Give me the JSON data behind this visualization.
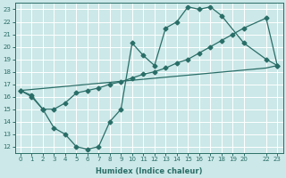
{
  "xlabel": "Humidex (Indice chaleur)",
  "bg_color": "#cce8e8",
  "grid_color": "#ffffff",
  "line_color": "#2a6e68",
  "xlim": [
    -0.5,
    23.5
  ],
  "ylim": [
    11.5,
    23.5
  ],
  "yticks": [
    12,
    13,
    14,
    15,
    16,
    17,
    18,
    19,
    20,
    21,
    22,
    23
  ],
  "xtick_positions": [
    0,
    1,
    2,
    3,
    4,
    5,
    6,
    7,
    8,
    9,
    10,
    11,
    12,
    13,
    14,
    15,
    16,
    17,
    18,
    19,
    20,
    22,
    23
  ],
  "xtick_labels": [
    "0",
    "1",
    "2",
    "3",
    "4",
    "5",
    "6",
    "7",
    "8",
    "9",
    "10",
    "11",
    "12",
    "13",
    "14",
    "15",
    "16",
    "17",
    "18",
    "19",
    "20",
    "22",
    "23"
  ],
  "line1_x": [
    0,
    1,
    2,
    3,
    4,
    5,
    6,
    7,
    8,
    9,
    10,
    11,
    12,
    13,
    14,
    15,
    16,
    17,
    18,
    20,
    22,
    23
  ],
  "line1_y": [
    16.5,
    16.0,
    15.0,
    13.5,
    13.0,
    12.0,
    11.8,
    12.0,
    14.0,
    15.0,
    20.3,
    19.3,
    18.5,
    21.5,
    22.0,
    23.2,
    23.0,
    23.2,
    22.5,
    20.3,
    19.0,
    18.5
  ],
  "line2_x": [
    0,
    22,
    23
  ],
  "line2_y": [
    16.5,
    18.3,
    18.5
  ],
  "line3_x": [
    0,
    1,
    2,
    3,
    4,
    5,
    6,
    7,
    8,
    9,
    10,
    11,
    12,
    13,
    14,
    15,
    16,
    17,
    18,
    19,
    20,
    22,
    23
  ],
  "line3_y": [
    16.5,
    16.1,
    15.0,
    15.0,
    15.5,
    16.3,
    16.5,
    16.7,
    17.0,
    17.2,
    17.5,
    17.8,
    18.0,
    18.3,
    18.7,
    19.0,
    19.5,
    20.0,
    20.5,
    21.0,
    21.5,
    22.3,
    18.5
  ],
  "marker_size": 2.5,
  "linewidth": 0.9
}
